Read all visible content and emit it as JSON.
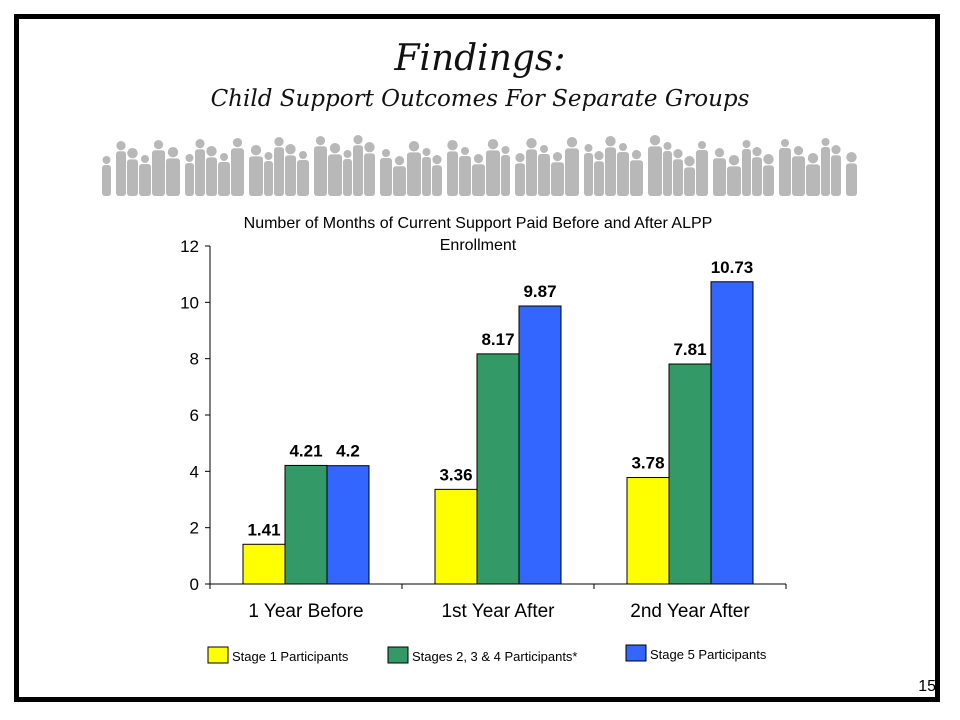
{
  "slide": {
    "title": "Findings:",
    "subtitle": "Child Support Outcomes For Separate Groups",
    "page_number": "15",
    "decoration": "crowd-silhouette"
  },
  "chart_data": {
    "type": "bar",
    "title": "Number of  Months of Current Support Paid Before and After ALPP Enrollment",
    "xlabel": "",
    "ylabel": "",
    "ylim": [
      0,
      12
    ],
    "yticks": [
      0,
      2,
      4,
      6,
      8,
      10,
      12
    ],
    "grid": false,
    "legend_position": "bottom",
    "categories": [
      "1 Year Before",
      "1st Year After",
      "2nd Year After"
    ],
    "series": [
      {
        "name": "Stage 1 Participants",
        "color": "#FFFF00",
        "values": [
          1.41,
          3.36,
          3.78
        ],
        "labels": [
          "1.41",
          "3.36",
          "3.78"
        ]
      },
      {
        "name": "Stages 2, 3 & 4 Participants*",
        "color": "#339966",
        "values": [
          4.21,
          8.17,
          7.81
        ],
        "labels": [
          "4.21",
          "8.17",
          "7.81"
        ]
      },
      {
        "name": "Stage 5 Participants",
        "color": "#3366FF",
        "values": [
          4.2,
          9.87,
          10.73
        ],
        "labels": [
          "4.2",
          "9.87",
          "10.73"
        ]
      }
    ]
  }
}
